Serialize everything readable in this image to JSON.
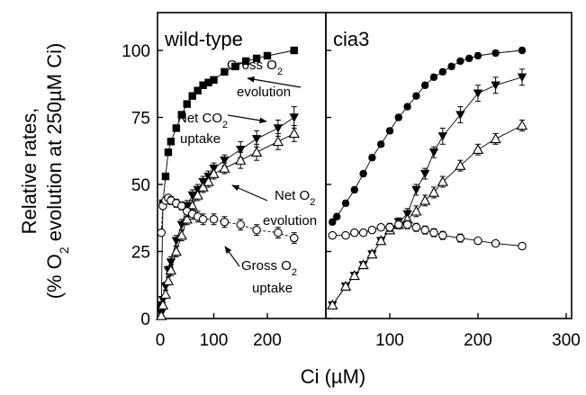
{
  "figure": {
    "ylabel_line1": "Relative rates,",
    "ylabel_line2_pre": "(% O",
    "ylabel_line2_sub": "2",
    "ylabel_line2_post": " evolution at 250µM Ci)",
    "xlabel": "Ci (µM)"
  },
  "chart_data": [
    {
      "type": "scatter",
      "title": "wild-type",
      "xlabel": "Ci (µM)",
      "ylabel": "Relative rates, (% O2 evolution at 250µM Ci)",
      "xlim": [
        0,
        305
      ],
      "ylim": [
        0,
        110
      ],
      "xticks": [
        0,
        100,
        200
      ],
      "yticks": [
        0,
        25,
        50,
        75,
        100
      ],
      "grid": false,
      "annotations": [
        {
          "pre": "Gross O",
          "sub": "2",
          "post": "",
          "line2": "evolution"
        },
        {
          "pre": "Net CO",
          "sub": "2",
          "post": "",
          "line2": "uptake"
        },
        {
          "pre": "Net O",
          "sub": "2",
          "post": "",
          "line2": "evolution"
        },
        {
          "pre": "Gross O",
          "sub": "2",
          "post": "",
          "line2": "uptake"
        }
      ],
      "series": [
        {
          "marker": "square-filled",
          "x": [
            2,
            5,
            10,
            15,
            20,
            30,
            40,
            50,
            60,
            70,
            80,
            90,
            100,
            120,
            140,
            160,
            180,
            200,
            250
          ],
          "y": [
            5,
            43,
            53,
            62,
            66,
            71,
            76,
            80,
            83,
            85,
            87,
            88,
            89,
            92,
            94,
            96,
            97,
            98,
            100
          ],
          "err": [
            1,
            1,
            1,
            1,
            1,
            1,
            1,
            1,
            1,
            1,
            1,
            1,
            1,
            1,
            1,
            1,
            1,
            1,
            1
          ]
        },
        {
          "marker": "triangle-down-filled",
          "x": [
            2,
            5,
            10,
            15,
            20,
            30,
            40,
            50,
            60,
            70,
            80,
            90,
            100,
            120,
            150,
            180,
            220,
            250
          ],
          "y": [
            2,
            7,
            12,
            18,
            21,
            29,
            35,
            42,
            46,
            48,
            51,
            53,
            56,
            59,
            63,
            67,
            71,
            75
          ],
          "err": [
            1,
            1,
            1.5,
            1.5,
            2,
            2,
            2,
            2,
            2,
            2,
            2,
            2,
            2,
            2,
            3,
            3,
            3,
            4
          ]
        },
        {
          "marker": "triangle-up-open",
          "x": [
            2,
            5,
            10,
            15,
            20,
            30,
            40,
            50,
            60,
            70,
            80,
            90,
            100,
            120,
            150,
            180,
            220,
            250
          ],
          "y": [
            1,
            5,
            9,
            14,
            18,
            25,
            31,
            37,
            42,
            46,
            49,
            51,
            54,
            56,
            59,
            62,
            66,
            69
          ],
          "err": [
            1,
            1,
            1.5,
            1.5,
            2,
            2,
            2,
            2,
            2,
            2,
            2,
            2,
            2,
            2,
            3,
            3,
            3,
            3
          ]
        },
        {
          "marker": "circle-open",
          "x": [
            2,
            5,
            10,
            15,
            20,
            30,
            40,
            50,
            60,
            70,
            80,
            100,
            120,
            150,
            180,
            220,
            250
          ],
          "y": [
            32,
            42,
            44,
            45,
            44,
            43,
            42,
            40,
            39,
            38,
            37,
            37,
            36,
            35,
            33,
            32,
            30
          ],
          "err": [
            1,
            1,
            1,
            1,
            1.5,
            1.5,
            1.5,
            2,
            2,
            2,
            2,
            2,
            2,
            2,
            2,
            2,
            2
          ]
        }
      ]
    },
    {
      "type": "scatter",
      "title": "cia3",
      "xlabel": "Ci (µM)",
      "ylabel": "",
      "xlim": [
        0,
        305
      ],
      "ylim": [
        0,
        110
      ],
      "xticks": [
        100,
        200,
        300
      ],
      "yticks": [
        0,
        25,
        50,
        75,
        100
      ],
      "grid": false,
      "series": [
        {
          "marker": "circle-filled",
          "x": [
            35,
            40,
            50,
            60,
            70,
            80,
            90,
            100,
            110,
            120,
            130,
            140,
            150,
            160,
            170,
            180,
            190,
            200,
            220,
            250
          ],
          "y": [
            36,
            38,
            43,
            48,
            54,
            60,
            65,
            70,
            75,
            79,
            83,
            87,
            90,
            92,
            94,
            96,
            97,
            98,
            99,
            100
          ],
          "err": [
            1,
            1,
            1,
            1,
            1,
            1,
            1,
            1,
            1,
            1,
            1,
            1,
            1,
            1,
            1,
            1,
            1,
            1,
            1,
            1
          ]
        },
        {
          "marker": "triangle-down-filled",
          "x": [
            35,
            50,
            60,
            70,
            80,
            90,
            100,
            110,
            120,
            130,
            140,
            150,
            160,
            180,
            200,
            220,
            250
          ],
          "y": [
            5,
            12,
            16,
            20,
            24,
            29,
            33,
            36,
            39,
            48,
            54,
            62,
            68,
            76,
            84,
            87,
            90
          ],
          "err": [
            1,
            1,
            1,
            1,
            1,
            1,
            1,
            1.5,
            2,
            2,
            2,
            2,
            3,
            3,
            3,
            3,
            3
          ]
        },
        {
          "marker": "triangle-up-open",
          "x": [
            35,
            50,
            60,
            70,
            80,
            90,
            100,
            110,
            120,
            130,
            140,
            150,
            160,
            180,
            200,
            220,
            250
          ],
          "y": [
            5,
            12,
            16,
            20,
            24,
            29,
            33,
            35,
            37,
            40,
            44,
            47,
            51,
            57,
            63,
            67,
            72
          ],
          "err": [
            1,
            1,
            1,
            1,
            1,
            1,
            1,
            1.5,
            2,
            2,
            2,
            2,
            2,
            2,
            2,
            2,
            2
          ]
        },
        {
          "marker": "circle-open",
          "x": [
            35,
            50,
            60,
            70,
            80,
            90,
            100,
            110,
            120,
            130,
            140,
            150,
            160,
            180,
            200,
            220,
            250
          ],
          "y": [
            31,
            31,
            32,
            32,
            33,
            34,
            34,
            35,
            35,
            34,
            33,
            32,
            31,
            30,
            29,
            28,
            27
          ],
          "err": [
            1,
            1,
            1,
            1,
            1,
            1,
            1.5,
            1.5,
            1.5,
            1.5,
            1.5,
            1.5,
            1.5,
            1.5,
            1,
            1,
            1
          ]
        }
      ]
    }
  ]
}
